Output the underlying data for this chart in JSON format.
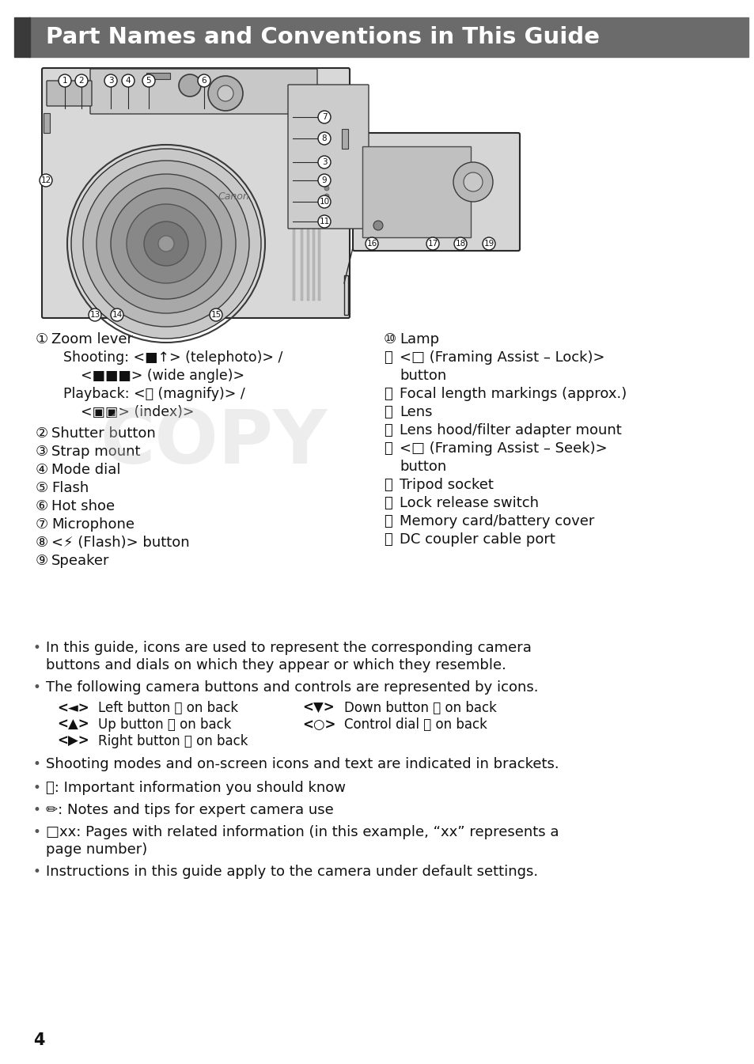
{
  "bg_color": "#ffffff",
  "header_bg": "#6b6b6b",
  "header_text": "Part Names and Conventions in This Guide",
  "header_text_color": "#ffffff",
  "header_font_size": 21,
  "body_font_size": 13.0,
  "page_number": "4",
  "left_entries": [
    {
      "num": 1,
      "lines": [
        "Zoom lever"
      ]
    },
    {
      "num": 0,
      "lines": [
        "    Shooting: <■↑> (telephoto)> /",
        "    <■■■> (wide angle)>"
      ]
    },
    {
      "num": 0,
      "lines": [
        "    Playback: <⌕ (magnify)> /",
        "    <▣▣> (index)>"
      ]
    },
    {
      "num": 2,
      "lines": [
        "Shutter button"
      ]
    },
    {
      "num": 3,
      "lines": [
        "Strap mount"
      ]
    },
    {
      "num": 4,
      "lines": [
        "Mode dial"
      ]
    },
    {
      "num": 5,
      "lines": [
        "Flash"
      ]
    },
    {
      "num": 6,
      "lines": [
        "Hot shoe"
      ]
    },
    {
      "num": 7,
      "lines": [
        "Microphone"
      ]
    },
    {
      "num": 8,
      "lines": [
        "<⚡ (Flash)> button"
      ]
    },
    {
      "num": 9,
      "lines": [
        "Speaker"
      ]
    }
  ],
  "right_entries": [
    {
      "num": 10,
      "lines": [
        "Lamp"
      ]
    },
    {
      "num": 11,
      "lines": [
        "<□ (Framing Assist – Lock)>",
        "button"
      ]
    },
    {
      "num": 12,
      "lines": [
        "Focal length markings (approx.)"
      ]
    },
    {
      "num": 13,
      "lines": [
        "Lens"
      ]
    },
    {
      "num": 14,
      "lines": [
        "Lens hood/filter adapter mount"
      ]
    },
    {
      "num": 15,
      "lines": [
        "<□ (Framing Assist – Seek)>",
        "button"
      ]
    },
    {
      "num": 16,
      "lines": [
        "Tripod socket"
      ]
    },
    {
      "num": 17,
      "lines": [
        "Lock release switch"
      ]
    },
    {
      "num": 18,
      "lines": [
        "Memory card/battery cover"
      ]
    },
    {
      "num": 19,
      "lines": [
        "DC coupler cable port"
      ]
    }
  ],
  "icon_rows": [
    [
      "<◄>",
      "Left button ⑮ on back",
      "<▼>",
      "Down button ⑲ on back"
    ],
    [
      "<▲>",
      "Up button ⑯ on back",
      "<○>",
      "Control dial ⑳ on back"
    ],
    [
      "<▶>",
      "Right button ⑰ on back",
      "",
      ""
    ]
  ],
  "bullets": [
    {
      "text": "In this guide, icons are used to represent the corresponding camera buttons and dials on which they appear or which they resemble.",
      "wrap": 72
    },
    {
      "text": "The following camera buttons and controls are represented by icons.",
      "wrap": 72
    },
    {
      "text": "Shooting modes and on-screen icons and text are indicated in brackets.",
      "wrap": 72
    },
    {
      "text": "ⓘ: Important information you should know",
      "wrap": 72
    },
    {
      "text": "✏: Notes and tips for expert camera use",
      "wrap": 72
    },
    {
      "text": "□xx: Pages with related information (in this example, “xx” represents a page number)",
      "wrap": 72
    },
    {
      "text": "Instructions in this guide apply to the camera under default settings.",
      "wrap": 72
    }
  ]
}
